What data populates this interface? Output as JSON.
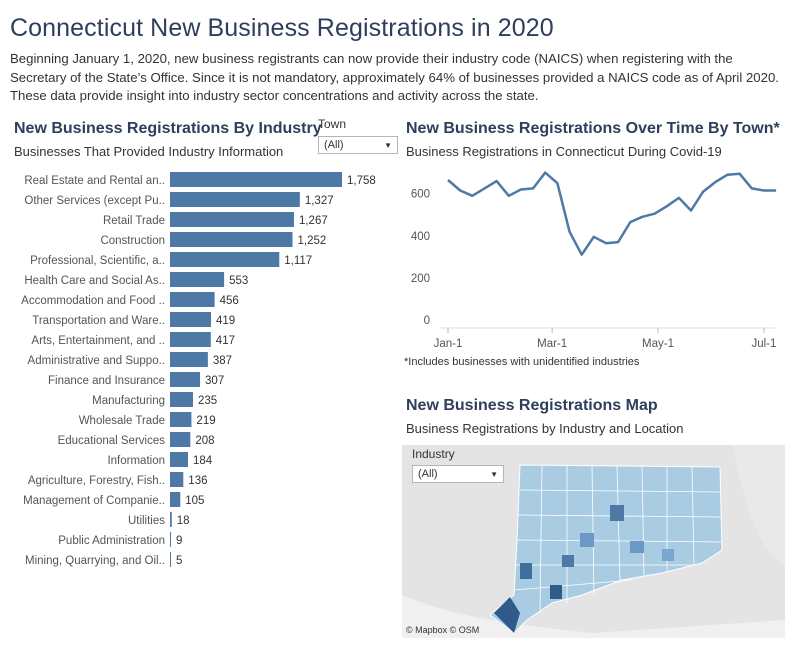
{
  "header": {
    "title": "Connecticut New Business Registrations in 2020",
    "description": "Beginning January 1, 2020, new business registrants can now provide their industry code (NAICS) when registering with the Secretary of the State’s Office. Since it is not mandatory, approximately 64% of businesses provided a NAICS code as of April 2020. These data provide insight into industry sector concentrations and activity across the state."
  },
  "industry_panel": {
    "title": "New Business Registrations By Industry",
    "subtitle": "Businesses That Provided Industry Information",
    "town_filter_label": "Town",
    "town_filter_value": "(All)"
  },
  "time_panel": {
    "title": "New Business Registrations Over Time By Town*",
    "subtitle": "Business Registrations in Connecticut During Covid-19",
    "footnote": "*Includes businesses with unidentified industries"
  },
  "map_panel": {
    "title": "New Business Registrations Map",
    "subtitle": "Business Registrations by Industry and Location",
    "industry_filter_label": "Industry",
    "industry_filter_value": "(All)",
    "credit": "© Mapbox  © OSM"
  },
  "colors": {
    "bar": "#4e79a7",
    "line": "#4e79a7",
    "title": "#2e3e5c"
  },
  "chart_data": [
    {
      "type": "bar",
      "orientation": "horizontal",
      "title": "New Business Registrations By Industry",
      "categories": [
        "Real Estate and Rental an..",
        "Other Services (except Pu..",
        "Retail Trade",
        "Construction",
        "Professional, Scientific, a..",
        "Health Care and Social As..",
        "Accommodation and Food ..",
        "Transportation and Ware..",
        "Arts, Entertainment, and ..",
        "Administrative and Suppo..",
        "Finance and Insurance",
        "Manufacturing",
        "Wholesale Trade",
        "Educational Services",
        "Information",
        "Agriculture, Forestry, Fish..",
        "Management of Companie..",
        "Utilities",
        "Public Administration",
        "Mining, Quarrying, and Oil.."
      ],
      "values": [
        1758,
        1327,
        1267,
        1252,
        1117,
        553,
        456,
        419,
        417,
        387,
        307,
        235,
        219,
        208,
        184,
        136,
        105,
        18,
        9,
        5
      ],
      "value_labels": [
        "1,758",
        "1,327",
        "1,267",
        "1,252",
        "1,117",
        "553",
        "456",
        "419",
        "417",
        "387",
        "307",
        "235",
        "219",
        "208",
        "184",
        "136",
        "105",
        "18",
        "9",
        "5"
      ]
    },
    {
      "type": "line",
      "title": "New Business Registrations Over Time By Town*",
      "x_ticks": [
        "Jan-1",
        "Mar-1",
        "May-1",
        "Jul-1"
      ],
      "y_ticks": [
        "0",
        "200",
        "400",
        "600"
      ],
      "ylim": [
        0,
        760
      ],
      "x": [
        "2020-01-01",
        "2020-01-08",
        "2020-01-15",
        "2020-01-22",
        "2020-01-29",
        "2020-02-05",
        "2020-02-12",
        "2020-02-19",
        "2020-02-26",
        "2020-03-04",
        "2020-03-11",
        "2020-03-18",
        "2020-03-25",
        "2020-04-01",
        "2020-04-08",
        "2020-04-15",
        "2020-04-22",
        "2020-04-29",
        "2020-05-06",
        "2020-05-13",
        "2020-05-20",
        "2020-05-27",
        "2020-06-03",
        "2020-06-10",
        "2020-06-17",
        "2020-06-24",
        "2020-07-01",
        "2020-07-08"
      ],
      "values": [
        665,
        615,
        590,
        625,
        660,
        590,
        620,
        625,
        700,
        650,
        420,
        310,
        395,
        365,
        370,
        465,
        490,
        505,
        540,
        580,
        520,
        610,
        655,
        690,
        695,
        625,
        615,
        615
      ],
      "grid": false
    }
  ]
}
